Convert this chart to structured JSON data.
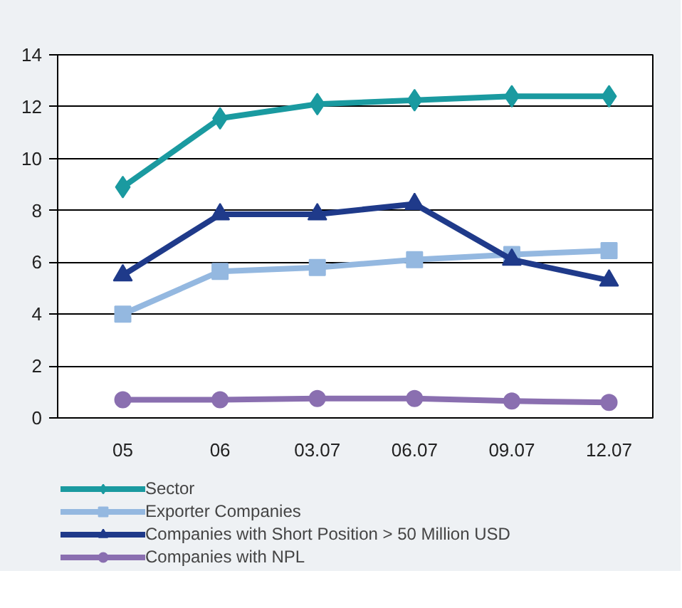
{
  "chart_data": {
    "type": "line",
    "categories": [
      "05",
      "06",
      "03.07",
      "06.07",
      "09.07",
      "12.07"
    ],
    "series": [
      {
        "name": "Sector",
        "color": "#1a9aa0",
        "marker": "diamond",
        "values": [
          8.9,
          11.55,
          12.1,
          12.25,
          12.4,
          12.4
        ]
      },
      {
        "name": "Exporter Companies",
        "color": "#94b8e0",
        "marker": "square",
        "values": [
          4.0,
          5.65,
          5.8,
          6.1,
          6.3,
          6.45
        ]
      },
      {
        "name": "Companies with Short Position > 50 Million USD",
        "color": "#1f3a8a",
        "marker": "triangle",
        "values": [
          5.5,
          7.85,
          7.85,
          8.25,
          6.1,
          5.3
        ]
      },
      {
        "name": "Companies with NPL",
        "color": "#8a6fb0",
        "marker": "circle",
        "values": [
          0.7,
          0.7,
          0.75,
          0.75,
          0.65,
          0.6
        ]
      }
    ],
    "ylim": [
      0,
      14
    ],
    "yticks": [
      0,
      2,
      4,
      6,
      8,
      10,
      12,
      14
    ],
    "grid": "y",
    "legend": "bottom",
    "line_style": "solid"
  }
}
